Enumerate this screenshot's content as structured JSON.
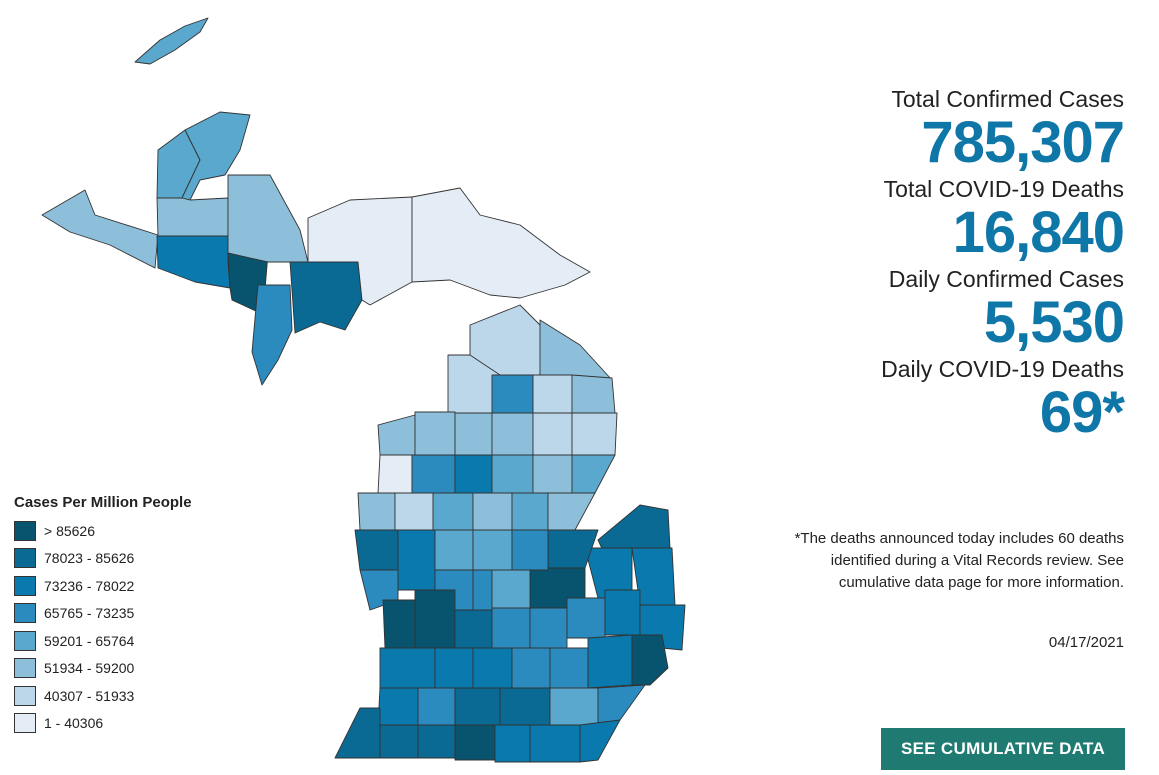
{
  "stats": [
    {
      "label": "Total Confirmed Cases",
      "value": "785,307"
    },
    {
      "label": "Total COVID-19 Deaths",
      "value": "16,840"
    },
    {
      "label": "Daily Confirmed Cases",
      "value": "5,530"
    },
    {
      "label": "Daily COVID-19 Deaths",
      "value": "69*"
    }
  ],
  "note": "*The deaths announced today includes 60 deaths identified during a Vital Records review. See cumulative data page for more information.",
  "date": "04/17/2021",
  "cta_label": "SEE CUMULATIVE DATA",
  "legend": {
    "title": "Cases Per Million People",
    "items": [
      {
        "label": "> 85626",
        "color": "#08536e"
      },
      {
        "label": "78023 - 85626",
        "color": "#0a6a94"
      },
      {
        "label": "73236 - 78022",
        "color": "#0a79ae"
      },
      {
        "label": "65765 - 73235",
        "color": "#2b8bbf"
      },
      {
        "label": "59201 - 65764",
        "color": "#5aa8cd"
      },
      {
        "label": "51934 - 59200",
        "color": "#8ebfda"
      },
      {
        "label": "40307 - 51933",
        "color": "#bcd7e9"
      },
      {
        "label": "1 - 40306",
        "color": "#e4ecf5"
      }
    ]
  },
  "colors": {
    "accent": "#0f77a8",
    "button": "#1f7a72"
  }
}
